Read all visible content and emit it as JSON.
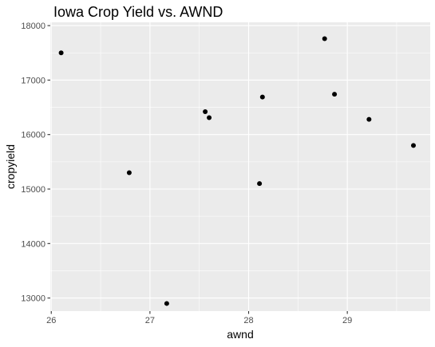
{
  "chart_data": {
    "type": "scatter",
    "title": "Iowa Crop Yield vs. AWND",
    "xlabel": "awnd",
    "ylabel": "cropyield",
    "xlim": [
      25.99,
      29.84
    ],
    "ylim": [
      12760,
      18060
    ],
    "x_major_ticks": [
      26,
      27,
      28,
      29
    ],
    "x_minor_ticks": [
      26.5,
      27.5,
      28.5,
      29.5
    ],
    "y_major_ticks": [
      13000,
      14000,
      15000,
      16000,
      17000,
      18000
    ],
    "y_minor_ticks": [
      12500,
      13500,
      14500,
      15500,
      16500,
      17500
    ],
    "x_tick_labels": [
      "26",
      "27",
      "28",
      "29"
    ],
    "y_tick_labels": [
      "13000",
      "14000",
      "15000",
      "16000",
      "17000",
      "18000"
    ],
    "points": [
      {
        "x": 26.1,
        "y": 17500
      },
      {
        "x": 26.79,
        "y": 15300
      },
      {
        "x": 27.17,
        "y": 12900
      },
      {
        "x": 27.56,
        "y": 16420
      },
      {
        "x": 27.6,
        "y": 16310
      },
      {
        "x": 28.11,
        "y": 15100
      },
      {
        "x": 28.14,
        "y": 16690
      },
      {
        "x": 28.77,
        "y": 17760
      },
      {
        "x": 28.87,
        "y": 16740
      },
      {
        "x": 29.22,
        "y": 16280
      },
      {
        "x": 29.67,
        "y": 15800
      }
    ],
    "panel_background": "#ebebeb",
    "grid_color": "#ffffff",
    "point_color": "#000000",
    "grid": true,
    "legend": "none"
  }
}
